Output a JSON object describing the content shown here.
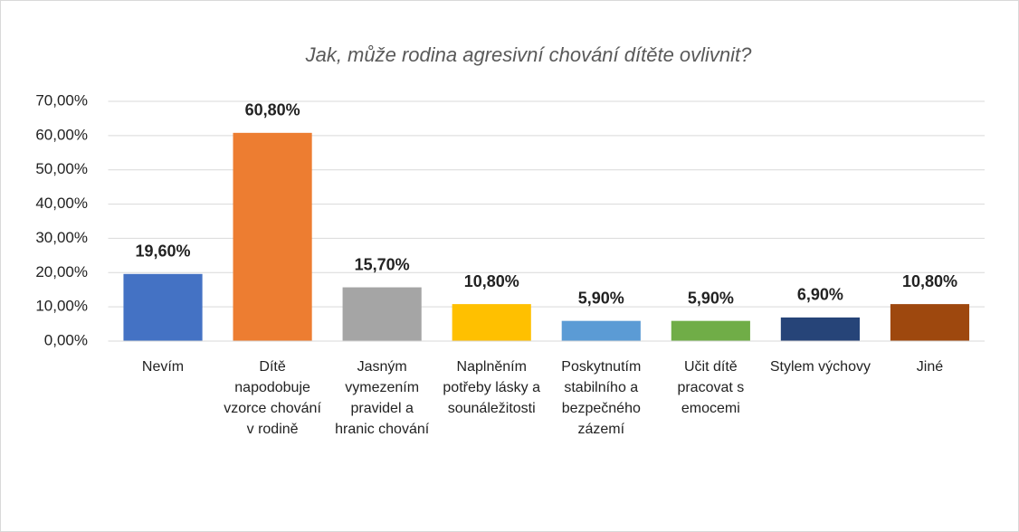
{
  "chart_data": {
    "type": "bar",
    "title": "Jak, může rodina agresivní chování dítěte ovlivnit?",
    "categories": [
      "Nevím",
      "Dítě napodobuje vzorce chování v rodině",
      "Jasným vymezením pravidel a hranic chování",
      "Naplněním potřeby lásky a sounáležitosti",
      "Poskytnutím stabilního a bezpečného zázemí",
      "Učit dítě pracovat s emocemi",
      "Stylem výchovy",
      "Jiné"
    ],
    "values": [
      19.6,
      60.8,
      15.7,
      10.8,
      5.9,
      5.9,
      6.9,
      10.8
    ],
    "value_labels": [
      "19,60%",
      "60,80%",
      "15,70%",
      "10,80%",
      "5,90%",
      "5,90%",
      "6,90%",
      "10,80%"
    ],
    "colors": [
      "#4472c4",
      "#ed7d31",
      "#a5a5a5",
      "#ffc000",
      "#5b9bd5",
      "#70ad47",
      "#264478",
      "#9e480e"
    ],
    "ylim": [
      0,
      70
    ],
    "yticks": [
      {
        "value": 0,
        "label": "0,00%"
      },
      {
        "value": 10,
        "label": "10,00%"
      },
      {
        "value": 20,
        "label": "20,00%"
      },
      {
        "value": 30,
        "label": "30,00%"
      },
      {
        "value": 40,
        "label": "40,00%"
      },
      {
        "value": 50,
        "label": "50,00%"
      },
      {
        "value": 60,
        "label": "60,00%"
      },
      {
        "value": 70,
        "label": "70,00%"
      }
    ],
    "grid": true
  }
}
